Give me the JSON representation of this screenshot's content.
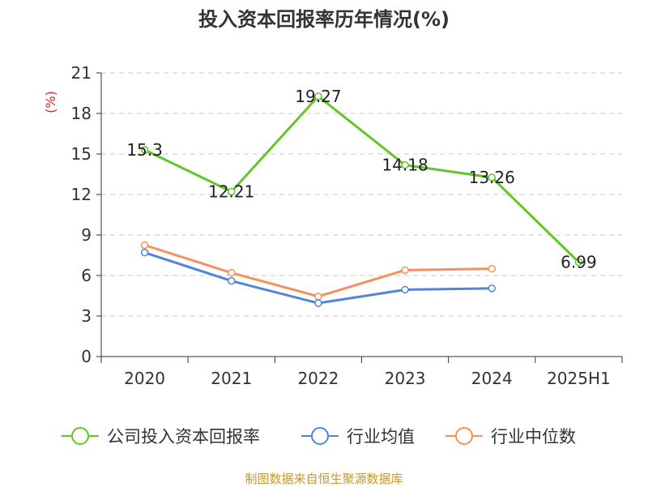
{
  "chart_data": {
    "type": "line",
    "title": "投入资本回报率历年情况(%)",
    "ylabel": "(%)",
    "categories": [
      "2020",
      "2021",
      "2022",
      "2023",
      "2024",
      "2025H1"
    ],
    "yticks": [
      "0",
      "3",
      "6",
      "9",
      "12",
      "15",
      "18",
      "21"
    ],
    "ylim": [
      0,
      21
    ],
    "grid": true,
    "legend_position": "bottom",
    "series": [
      {
        "name": "公司投入资本回报率",
        "color": "#62c52a",
        "values": [
          15.3,
          12.21,
          19.27,
          14.18,
          13.26,
          6.99
        ],
        "data_labels": [
          "15.3",
          "12.21",
          "19.27",
          "14.18",
          "13.26",
          "6.99"
        ]
      },
      {
        "name": "行业均值",
        "color": "#5284dd",
        "values": [
          7.7,
          5.6,
          3.95,
          4.95,
          5.05,
          null
        ]
      },
      {
        "name": "行业中位数",
        "color": "#f78f5d",
        "values": [
          8.25,
          6.2,
          4.45,
          6.4,
          6.5,
          null
        ]
      }
    ]
  },
  "source": "制图数据来自恒生聚源数据库"
}
